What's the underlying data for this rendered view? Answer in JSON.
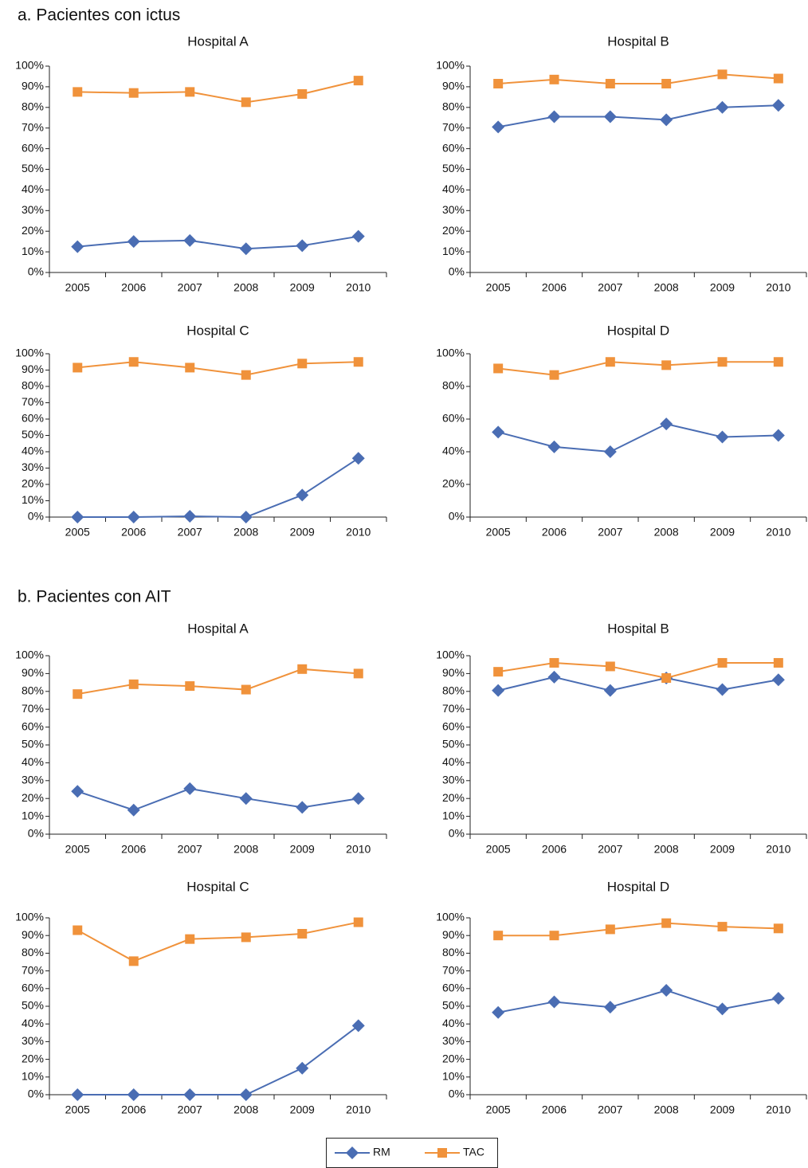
{
  "sections": [
    {
      "heading": "a. Pacientes con ictus"
    },
    {
      "heading": "b. Pacientes con AIT"
    }
  ],
  "chart_data": [
    {
      "type": "line",
      "title": "Hospital A",
      "categories": [
        "2005",
        "2006",
        "2007",
        "2008",
        "2009",
        "2010"
      ],
      "series": [
        {
          "name": "RM",
          "color": "#4a6db3",
          "marker": "diamond",
          "values": [
            12.5,
            15,
            15.5,
            11.5,
            13,
            17.5
          ]
        },
        {
          "name": "TAC",
          "color": "#f0923b",
          "marker": "square",
          "values": [
            87.5,
            87,
            87.5,
            82.5,
            86.5,
            93
          ]
        }
      ],
      "ylim": [
        0,
        100
      ],
      "yticks": [
        {
          "value": 0,
          "label": "0%"
        },
        {
          "value": 10,
          "label": "10%"
        },
        {
          "value": 20,
          "label": "20%"
        },
        {
          "value": 30,
          "label": "30%"
        },
        {
          "value": 40,
          "label": "40%"
        },
        {
          "value": 50,
          "label": "50%"
        },
        {
          "value": 60,
          "label": "60%"
        },
        {
          "value": 70,
          "label": "70%"
        },
        {
          "value": 80,
          "label": "80%"
        },
        {
          "value": 90,
          "label": "90%"
        },
        {
          "value": 100,
          "label": "100%"
        }
      ]
    },
    {
      "type": "line",
      "title": "Hospital B",
      "categories": [
        "2005",
        "2006",
        "2007",
        "2008",
        "2009",
        "2010"
      ],
      "series": [
        {
          "name": "RM",
          "color": "#4a6db3",
          "marker": "diamond",
          "values": [
            70.5,
            75.5,
            75.5,
            74,
            80,
            81
          ]
        },
        {
          "name": "TAC",
          "color": "#f0923b",
          "marker": "square",
          "values": [
            91.5,
            93.5,
            91.5,
            91.5,
            96,
            94
          ]
        }
      ],
      "ylim": [
        0,
        100
      ],
      "yticks": [
        {
          "value": 0,
          "label": "0%"
        },
        {
          "value": 10,
          "label": "10%"
        },
        {
          "value": 20,
          "label": "20%"
        },
        {
          "value": 30,
          "label": "30%"
        },
        {
          "value": 40,
          "label": "40%"
        },
        {
          "value": 50,
          "label": "50%"
        },
        {
          "value": 60,
          "label": "60%"
        },
        {
          "value": 70,
          "label": "70%"
        },
        {
          "value": 80,
          "label": "80%"
        },
        {
          "value": 90,
          "label": "90%"
        },
        {
          "value": 100,
          "label": "100%"
        }
      ]
    },
    {
      "type": "line",
      "title": "Hospital C",
      "categories": [
        "2005",
        "2006",
        "2007",
        "2008",
        "2009",
        "2010"
      ],
      "series": [
        {
          "name": "RM",
          "color": "#4a6db3",
          "marker": "diamond",
          "values": [
            0,
            0,
            0.5,
            0,
            13.5,
            36
          ]
        },
        {
          "name": "TAC",
          "color": "#f0923b",
          "marker": "square",
          "values": [
            91.5,
            95,
            91.5,
            87,
            94,
            95
          ]
        }
      ],
      "ylim": [
        0,
        100
      ],
      "yticks": [
        {
          "value": 0,
          "label": "0%"
        },
        {
          "value": 10,
          "label": "10%"
        },
        {
          "value": 20,
          "label": "20%"
        },
        {
          "value": 30,
          "label": "30%"
        },
        {
          "value": 40,
          "label": "40%"
        },
        {
          "value": 50,
          "label": "50%"
        },
        {
          "value": 60,
          "label": "60%"
        },
        {
          "value": 70,
          "label": "70%"
        },
        {
          "value": 80,
          "label": "80%"
        },
        {
          "value": 90,
          "label": "90%"
        },
        {
          "value": 100,
          "label": "100%"
        }
      ]
    },
    {
      "type": "line",
      "title": "Hospital D",
      "categories": [
        "2005",
        "2006",
        "2007",
        "2008",
        "2009",
        "2010"
      ],
      "series": [
        {
          "name": "RM",
          "color": "#4a6db3",
          "marker": "diamond",
          "values": [
            52,
            43,
            40,
            57,
            49,
            50
          ]
        },
        {
          "name": "TAC",
          "color": "#f0923b",
          "marker": "square",
          "values": [
            91,
            87,
            95,
            93,
            95,
            95
          ]
        }
      ],
      "ylim": [
        0,
        100
      ],
      "yticks": [
        {
          "value": 0,
          "label": "0%"
        },
        {
          "value": 20,
          "label": "20%"
        },
        {
          "value": 40,
          "label": "40%"
        },
        {
          "value": 60,
          "label": "60%"
        },
        {
          "value": 80,
          "label": "80%"
        },
        {
          "value": 100,
          "label": "100%"
        }
      ]
    },
    {
      "type": "line",
      "title": "Hospital A",
      "categories": [
        "2005",
        "2006",
        "2007",
        "2008",
        "2009",
        "2010"
      ],
      "series": [
        {
          "name": "RM",
          "color": "#4a6db3",
          "marker": "diamond",
          "values": [
            24,
            13.5,
            25.5,
            20,
            15,
            20
          ]
        },
        {
          "name": "TAC",
          "color": "#f0923b",
          "marker": "square",
          "values": [
            78.5,
            84,
            83,
            81,
            92.5,
            90
          ]
        }
      ],
      "ylim": [
        0,
        100
      ],
      "yticks": [
        {
          "value": 0,
          "label": "0%"
        },
        {
          "value": 10,
          "label": "10%"
        },
        {
          "value": 20,
          "label": "20%"
        },
        {
          "value": 30,
          "label": "30%"
        },
        {
          "value": 40,
          "label": "40%"
        },
        {
          "value": 50,
          "label": "50%"
        },
        {
          "value": 60,
          "label": "60%"
        },
        {
          "value": 70,
          "label": "70%"
        },
        {
          "value": 80,
          "label": "80%"
        },
        {
          "value": 90,
          "label": "90%"
        },
        {
          "value": 100,
          "label": "100%"
        }
      ]
    },
    {
      "type": "line",
      "title": "Hospital B",
      "categories": [
        "2005",
        "2006",
        "2007",
        "2008",
        "2009",
        "2010"
      ],
      "series": [
        {
          "name": "RM",
          "color": "#4a6db3",
          "marker": "diamond",
          "values": [
            80.5,
            88,
            80.5,
            87.5,
            81,
            86.5
          ]
        },
        {
          "name": "TAC",
          "color": "#f0923b",
          "marker": "square",
          "values": [
            91,
            96,
            94,
            87.5,
            96,
            96
          ]
        }
      ],
      "ylim": [
        0,
        100
      ],
      "yticks": [
        {
          "value": 0,
          "label": "0%"
        },
        {
          "value": 10,
          "label": "10%"
        },
        {
          "value": 20,
          "label": "20%"
        },
        {
          "value": 30,
          "label": "30%"
        },
        {
          "value": 40,
          "label": "40%"
        },
        {
          "value": 50,
          "label": "50%"
        },
        {
          "value": 60,
          "label": "60%"
        },
        {
          "value": 70,
          "label": "70%"
        },
        {
          "value": 80,
          "label": "80%"
        },
        {
          "value": 90,
          "label": "90%"
        },
        {
          "value": 100,
          "label": "100%"
        }
      ]
    },
    {
      "type": "line",
      "title": "Hospital C",
      "categories": [
        "2005",
        "2006",
        "2007",
        "2008",
        "2009",
        "2010"
      ],
      "series": [
        {
          "name": "RM",
          "color": "#4a6db3",
          "marker": "diamond",
          "values": [
            0,
            0,
            0,
            0,
            15,
            39
          ]
        },
        {
          "name": "TAC",
          "color": "#f0923b",
          "marker": "square",
          "values": [
            93,
            75.5,
            88,
            89,
            91,
            97.5
          ]
        }
      ],
      "ylim": [
        0,
        100
      ],
      "yticks": [
        {
          "value": 0,
          "label": "0%"
        },
        {
          "value": 10,
          "label": "10%"
        },
        {
          "value": 20,
          "label": "20%"
        },
        {
          "value": 30,
          "label": "30%"
        },
        {
          "value": 40,
          "label": "40%"
        },
        {
          "value": 50,
          "label": "50%"
        },
        {
          "value": 60,
          "label": "60%"
        },
        {
          "value": 70,
          "label": "70%"
        },
        {
          "value": 80,
          "label": "80%"
        },
        {
          "value": 90,
          "label": "90%"
        },
        {
          "value": 100,
          "label": "100%"
        }
      ]
    },
    {
      "type": "line",
      "title": "Hospital D",
      "categories": [
        "2005",
        "2006",
        "2007",
        "2008",
        "2009",
        "2010"
      ],
      "series": [
        {
          "name": "RM",
          "color": "#4a6db3",
          "marker": "diamond",
          "values": [
            46.5,
            52.5,
            49.5,
            59,
            48.5,
            54.5
          ]
        },
        {
          "name": "TAC",
          "color": "#f0923b",
          "marker": "square",
          "values": [
            90,
            90,
            93.5,
            97,
            95,
            94
          ]
        }
      ],
      "ylim": [
        0,
        100
      ],
      "yticks": [
        {
          "value": 0,
          "label": "0%"
        },
        {
          "value": 10,
          "label": "10%"
        },
        {
          "value": 20,
          "label": "20%"
        },
        {
          "value": 30,
          "label": "30%"
        },
        {
          "value": 40,
          "label": "40%"
        },
        {
          "value": 50,
          "label": "50%"
        },
        {
          "value": 60,
          "label": "60%"
        },
        {
          "value": 70,
          "label": "70%"
        },
        {
          "value": 80,
          "label": "80%"
        },
        {
          "value": 90,
          "label": "90%"
        },
        {
          "value": 100,
          "label": "100%"
        }
      ]
    }
  ]
}
